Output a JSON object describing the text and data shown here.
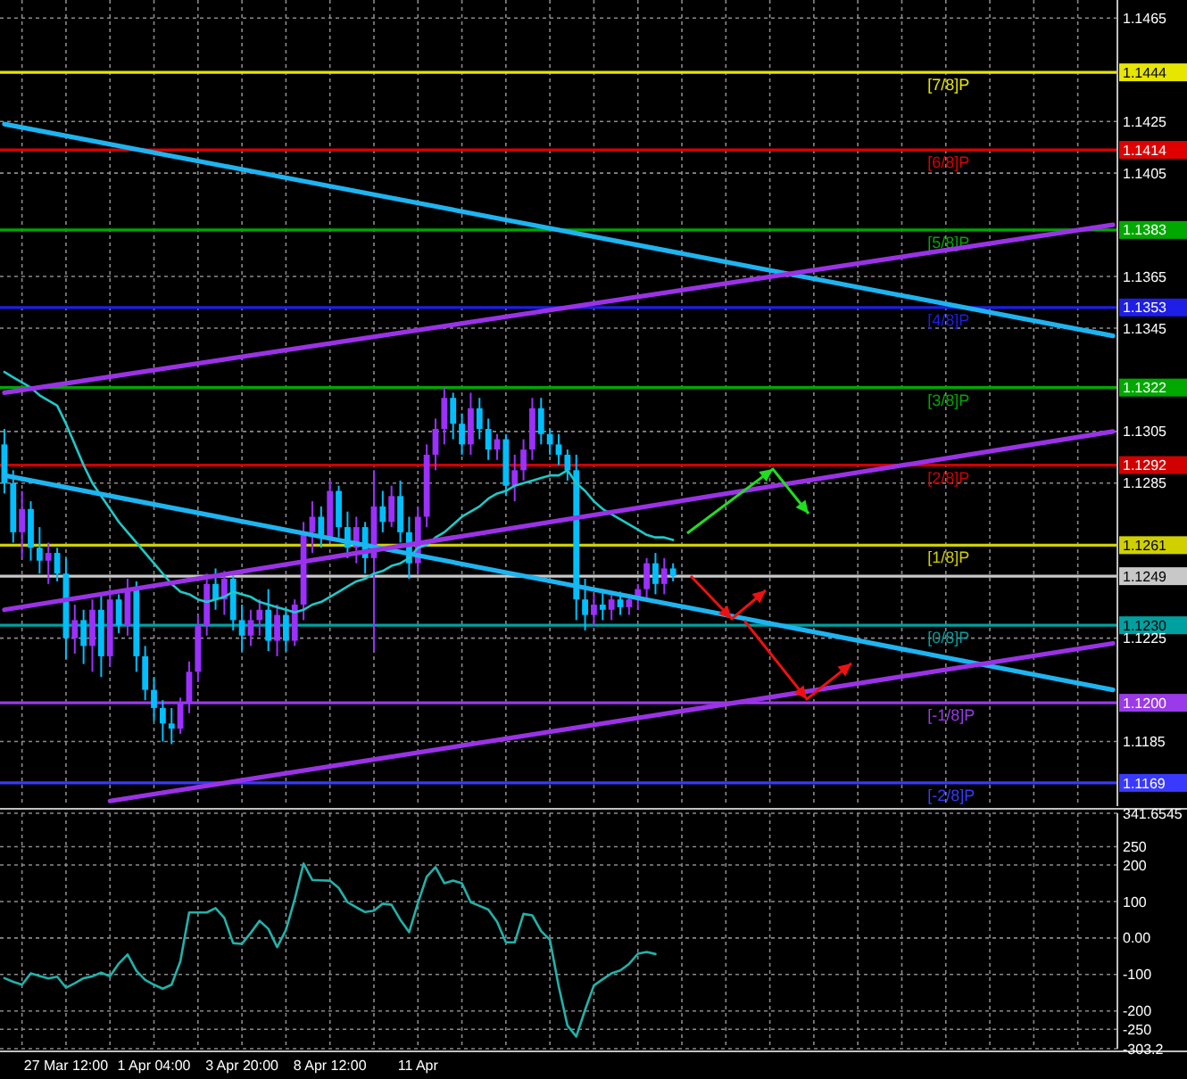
{
  "chart_data": [
    {
      "type": "candlestick",
      "ylim": [
        1.116,
        1.1472
      ],
      "grid": true,
      "tick_labels": "y",
      "categories": [
        null,
        null,
        null,
        null,
        null,
        null,
        null,
        null,
        null,
        null,
        null,
        null,
        null,
        null,
        null,
        null,
        null,
        null,
        null,
        null,
        null,
        null,
        null,
        null,
        null,
        null,
        null,
        null,
        null,
        null,
        null,
        null,
        null,
        null,
        null,
        null,
        null,
        null,
        null,
        null,
        null,
        null,
        null,
        null,
        null,
        null,
        null,
        null,
        null,
        null,
        null,
        null,
        null,
        null,
        null,
        null,
        null,
        null,
        null,
        null,
        null,
        null,
        null,
        null,
        null,
        null,
        null,
        null,
        null,
        null,
        null,
        null,
        null,
        null,
        null,
        null,
        null,
        null,
        null,
        null,
        null,
        null,
        null,
        null,
        null,
        null,
        null,
        null,
        null,
        null,
        null,
        null,
        null,
        null,
        null,
        null,
        null,
        null,
        null,
        null,
        null,
        null,
        null,
        null,
        null,
        null,
        null,
        null,
        null,
        null,
        null,
        null,
        null,
        null,
        null,
        null,
        null,
        null,
        null,
        null,
        null,
        null,
        null,
        null,
        null,
        null,
        null
      ],
      "yticks": [
        1.1465,
        {
          "value": 1.1444,
          "label": "1.1444"
        },
        1.1425,
        {
          "value": 1.1414,
          "label": "1.1414"
        },
        1.1405,
        {
          "value": 1.1383,
          "label": "1.1383"
        },
        1.1365,
        {
          "value": 1.1353,
          "label": "1.1353"
        },
        1.1345,
        {
          "value": 1.1322,
          "label": "1.1322"
        },
        1.1305,
        {
          "value": 1.1292,
          "label": "1.1292"
        },
        1.1285,
        {
          "value": 1.1261,
          "label": "1.1261"
        },
        {
          "value": 1.1249,
          "label": "1.1249"
        },
        {
          "value": 1.123,
          "label": "1.1230"
        },
        1.1225,
        {
          "value": 1.12,
          "label": "1.1200"
        },
        1.1185,
        {
          "value": 1.1169,
          "label": "1.1169"
        }
      ],
      "ref_lines": [
        {
          "axis": "y",
          "value": 1.1444,
          "label": "[7/8]P",
          "color": "#e6e600"
        },
        {
          "axis": "y",
          "value": 1.1414,
          "label": "[6/8]P",
          "color": "#e00000"
        },
        {
          "axis": "y",
          "value": 1.1383,
          "label": "[5/8]P",
          "color": "#00a800"
        },
        {
          "axis": "y",
          "value": 1.1353,
          "label": "[4/8]P",
          "color": "#1e1ee6"
        },
        {
          "axis": "y",
          "value": 1.1322,
          "label": "[3/8]P",
          "color": "#00a800"
        },
        {
          "axis": "y",
          "value": 1.1292,
          "label": "[2/8]P",
          "color": "#d00000"
        },
        {
          "axis": "y",
          "value": 1.1261,
          "label": "[1/8]P",
          "color": "#d0d000"
        },
        {
          "axis": "y",
          "value": 1.1249,
          "color": "#c8c8c8"
        },
        {
          "axis": "y",
          "value": 1.123,
          "label": "[0/8]P",
          "color": "#00a0a0"
        },
        {
          "axis": "y",
          "value": 1.12,
          "label": "[-1/8]P",
          "color": "#9a3ae8"
        },
        {
          "axis": "y",
          "value": 1.1169,
          "label": "[-2/8]P",
          "color": "#3a3aff"
        }
      ],
      "series": [
        {
          "ohlc": [
            [
              1.13,
              1.1306,
              1.1281,
              1.1285
            ],
            [
              1.1285,
              1.129,
              1.1262,
              1.1266
            ],
            [
              1.1266,
              1.1282,
              1.1256,
              1.1275
            ],
            [
              1.1275,
              1.1278,
              1.1255,
              1.126
            ],
            [
              1.126,
              1.1268,
              1.125,
              1.1255
            ],
            [
              1.1255,
              1.1262,
              1.1246,
              1.1258
            ],
            [
              1.1258,
              1.126,
              1.1247,
              1.125
            ],
            [
              1.125,
              1.1256,
              1.1217,
              1.1225
            ],
            [
              1.1225,
              1.1238,
              1.1219,
              1.1232
            ],
            [
              1.1232,
              1.1236,
              1.1215,
              1.1222
            ],
            [
              1.1222,
              1.124,
              1.1212,
              1.1236
            ],
            [
              1.1236,
              1.1242,
              1.121,
              1.1218
            ],
            [
              1.1218,
              1.1244,
              1.1214,
              1.124
            ],
            [
              1.124,
              1.1242,
              1.1227,
              1.123
            ],
            [
              1.123,
              1.1248,
              1.1226,
              1.1244
            ],
            [
              1.1244,
              1.1247,
              1.1212,
              1.1218
            ],
            [
              1.1218,
              1.1222,
              1.1201,
              1.1205
            ],
            [
              1.1205,
              1.121,
              1.1193,
              1.1198
            ],
            [
              1.1198,
              1.1201,
              1.1185,
              1.1192
            ],
            [
              1.1192,
              1.1198,
              1.1184,
              1.119
            ],
            [
              1.119,
              1.1202,
              1.1188,
              1.12
            ],
            [
              1.12,
              1.1216,
              1.1196,
              1.1212
            ],
            [
              1.1212,
              1.1234,
              1.1208,
              1.123
            ],
            [
              1.123,
              1.125,
              1.1226,
              1.1246
            ],
            [
              1.1246,
              1.1252,
              1.1236,
              1.124
            ],
            [
              1.124,
              1.1251,
              1.1234,
              1.1248
            ],
            [
              1.1248,
              1.125,
              1.1228,
              1.1232
            ],
            [
              1.1232,
              1.1238,
              1.122,
              1.1226
            ],
            [
              1.1226,
              1.1236,
              1.1222,
              1.1232
            ],
            [
              1.1232,
              1.124,
              1.1226,
              1.1236
            ],
            [
              1.1236,
              1.1244,
              1.122,
              1.1224
            ],
            [
              1.1224,
              1.1238,
              1.1218,
              1.1234
            ],
            [
              1.1234,
              1.1237,
              1.122,
              1.1224
            ],
            [
              1.1224,
              1.124,
              1.1222,
              1.1238
            ],
            [
              1.1238,
              1.127,
              1.1232,
              1.1266
            ],
            [
              1.1266,
              1.1278,
              1.1258,
              1.1272
            ],
            [
              1.1272,
              1.1276,
              1.126,
              1.1264
            ],
            [
              1.1264,
              1.1286,
              1.1262,
              1.1282
            ],
            [
              1.1282,
              1.1284,
              1.1264,
              1.1268
            ],
            [
              1.1268,
              1.1274,
              1.1256,
              1.126
            ],
            [
              1.126,
              1.1272,
              1.1254,
              1.1268
            ],
            [
              1.1268,
              1.127,
              1.125,
              1.1256
            ],
            [
              1.1256,
              1.129,
              1.122,
              1.1276
            ],
            [
              1.1276,
              1.1282,
              1.1266,
              1.127
            ],
            [
              1.127,
              1.1284,
              1.1268,
              1.128
            ],
            [
              1.128,
              1.1286,
              1.1262,
              1.1266
            ],
            [
              1.1266,
              1.1272,
              1.1248,
              1.1254
            ],
            [
              1.1254,
              1.1276,
              1.125,
              1.1272
            ],
            [
              1.1272,
              1.13,
              1.1268,
              1.1296
            ],
            [
              1.1296,
              1.131,
              1.129,
              1.1306
            ],
            [
              1.1306,
              1.1322,
              1.13,
              1.1318
            ],
            [
              1.1318,
              1.132,
              1.1302,
              1.1308
            ],
            [
              1.1308,
              1.1312,
              1.1296,
              1.13
            ],
            [
              1.13,
              1.132,
              1.1296,
              1.1314
            ],
            [
              1.1314,
              1.1318,
              1.1302,
              1.1306
            ],
            [
              1.1306,
              1.131,
              1.1294,
              1.1298
            ],
            [
              1.1298,
              1.1304,
              1.1294,
              1.1302
            ],
            [
              1.1302,
              1.1304,
              1.128,
              1.1284
            ],
            [
              1.1284,
              1.1296,
              1.1278,
              1.129
            ],
            [
              1.129,
              1.1302,
              1.1286,
              1.1298
            ],
            [
              1.1298,
              1.1318,
              1.1294,
              1.1314
            ],
            [
              1.1314,
              1.1318,
              1.13,
              1.1304
            ],
            [
              1.1304,
              1.1306,
              1.1296,
              1.13
            ],
            [
              1.13,
              1.1304,
              1.1292,
              1.1296
            ],
            [
              1.1296,
              1.1298,
              1.1286,
              1.129
            ],
            [
              1.129,
              1.1296,
              1.1232,
              1.124
            ],
            [
              1.124,
              1.1248,
              1.1228,
              1.1234
            ],
            [
              1.1234,
              1.1242,
              1.123,
              1.1238
            ],
            [
              1.1238,
              1.1244,
              1.1232,
              1.1236
            ],
            [
              1.1236,
              1.1242,
              1.1232,
              1.124
            ],
            [
              1.124,
              1.1243,
              1.1234,
              1.1237
            ],
            [
              1.1237,
              1.1242,
              1.1234,
              1.124
            ],
            [
              1.124,
              1.1246,
              1.1236,
              1.1244
            ],
            [
              1.1244,
              1.1256,
              1.124,
              1.1254
            ],
            [
              1.1254,
              1.1258,
              1.1242,
              1.1246
            ],
            [
              1.1246,
              1.1256,
              1.1242,
              1.1252
            ],
            [
              1.1252,
              1.1254,
              1.1247,
              1.1249
            ],
            null,
            null,
            null,
            null,
            null,
            null,
            null,
            null,
            null,
            null,
            null,
            null,
            null,
            null,
            null,
            null,
            null,
            null,
            null,
            null,
            null,
            null,
            null,
            null,
            null,
            null,
            null,
            null,
            null,
            null,
            null,
            null,
            null,
            null,
            null,
            null,
            null,
            null,
            null,
            null,
            null,
            null,
            null,
            null,
            null,
            null,
            null,
            null,
            null,
            null
          ],
          "colors": [
            "#00bfff",
            "#00bfff",
            "#9b30ff",
            "#00bfff",
            "#00bfff",
            "#9b30ff",
            "#00bfff",
            "#00bfff",
            "#9b30ff",
            "#00bfff",
            "#9b30ff",
            "#00bfff",
            "#9b30ff",
            "#00bfff",
            "#9b30ff",
            "#00bfff",
            "#00bfff",
            "#00bfff",
            "#00bfff",
            "#00bfff",
            "#9b30ff",
            "#9b30ff",
            "#9b30ff",
            "#9b30ff",
            "#00bfff",
            "#9b30ff",
            "#00bfff",
            "#00bfff",
            "#9b30ff",
            "#9b30ff",
            "#00bfff",
            "#9b30ff",
            "#00bfff",
            "#9b30ff",
            "#9b30ff",
            "#9b30ff",
            "#00bfff",
            "#9b30ff",
            "#00bfff",
            "#00bfff",
            "#9b30ff",
            "#00bfff",
            "#9b30ff",
            "#00bfff",
            "#9b30ff",
            "#00bfff",
            "#00bfff",
            "#9b30ff",
            "#9b30ff",
            "#9b30ff",
            "#9b30ff",
            "#00bfff",
            "#00bfff",
            "#9b30ff",
            "#00bfff",
            "#00bfff",
            "#9b30ff",
            "#00bfff",
            "#9b30ff",
            "#9b30ff",
            "#9b30ff",
            "#00bfff",
            "#00bfff",
            "#00bfff",
            "#00bfff",
            "#00bfff",
            "#00bfff",
            "#9b30ff",
            "#00bfff",
            "#9b30ff",
            "#00bfff",
            "#9b30ff",
            "#9b30ff",
            "#9b30ff",
            "#00bfff",
            "#9b30ff",
            "#00bfff",
            null,
            null,
            null,
            null,
            null,
            null,
            null,
            null,
            null,
            null,
            null,
            null,
            null,
            null,
            null,
            null,
            null,
            null,
            null,
            null,
            null,
            null,
            null,
            null,
            null,
            null,
            null,
            null,
            null,
            null,
            null,
            null,
            null,
            null,
            null,
            null,
            null,
            null,
            null,
            null,
            null,
            null,
            null,
            null,
            null,
            null,
            null,
            null,
            null,
            null
          ]
        },
        {
          "type": "line",
          "color": "#20c8c8",
          "values": [
            1.1328,
            1.1326,
            1.1324,
            1.1322,
            1.1319,
            1.1317,
            1.1315,
            1.1308,
            1.13,
            1.1292,
            1.1285,
            1.128,
            1.1275,
            1.127,
            1.1266,
            1.1262,
            1.1258,
            1.1254,
            1.125,
            1.1246,
            1.1243,
            1.1242,
            1.124,
            1.1239,
            1.124,
            1.1241,
            1.1243,
            1.1242,
            1.1241,
            1.1239,
            1.1238,
            1.1237,
            1.1236,
            1.1235,
            1.1236,
            1.1238,
            1.1239,
            1.1241,
            1.1243,
            1.1245,
            1.1247,
            1.1248,
            1.125,
            1.1251,
            1.1253,
            1.1254,
            1.1256,
            1.126,
            1.1261,
            1.1264,
            1.1266,
            1.1269,
            1.1272,
            1.1274,
            1.1276,
            1.1279,
            1.1281,
            1.1282,
            1.1284,
            1.1285,
            1.1286,
            1.1287,
            1.1288,
            1.1288,
            1.129,
            1.1285,
            1.1282,
            1.1278,
            1.1275,
            1.1273,
            1.1271,
            1.1269,
            1.1267,
            1.1265,
            1.1264,
            1.1264,
            1.1263,
            null,
            null,
            null,
            null,
            null,
            null,
            null,
            null,
            null,
            null,
            null,
            null,
            null,
            null,
            null,
            null,
            null,
            null,
            null,
            null,
            null,
            null,
            null,
            null,
            null,
            null,
            null,
            null,
            null,
            null,
            null,
            null,
            null,
            null,
            null,
            null,
            null,
            null,
            null,
            null,
            null,
            null,
            null,
            null,
            null,
            null,
            null,
            null,
            null,
            null
          ]
        },
        {
          "type": "line",
          "color": "#1eb4f0",
          "values": [
            1.1288,
            null,
            null,
            null,
            null,
            null,
            null,
            null,
            null,
            null,
            null,
            null,
            null,
            null,
            null,
            null,
            null,
            null,
            null,
            null,
            null,
            null,
            null,
            null,
            null,
            null,
            null,
            null,
            null,
            null,
            null,
            null,
            null,
            null,
            null,
            null,
            null,
            null,
            null,
            null,
            null,
            null,
            null,
            null,
            null,
            null,
            null,
            null,
            null,
            null,
            null,
            null,
            null,
            null,
            null,
            null,
            null,
            null,
            null,
            null,
            null,
            null,
            null,
            null,
            null,
            null,
            null,
            null,
            null,
            null,
            null,
            null,
            null,
            null,
            null,
            null,
            null,
            null,
            null,
            null,
            null,
            null,
            null,
            null,
            null,
            null,
            null,
            null,
            null,
            null,
            null,
            null,
            null,
            null,
            null,
            null,
            null,
            null,
            null,
            null,
            null,
            null,
            null,
            null,
            null,
            null,
            null,
            null,
            null,
            null,
            null,
            null,
            null,
            null,
            null,
            null,
            null,
            null,
            null,
            null,
            null,
            null,
            null,
            null,
            null,
            null,
            1.1205
          ]
        },
        {
          "type": "line",
          "color": "#1eb4f0",
          "values": [
            1.1424,
            null,
            null,
            null,
            null,
            null,
            null,
            null,
            null,
            null,
            null,
            null,
            null,
            null,
            null,
            null,
            null,
            null,
            null,
            null,
            null,
            null,
            null,
            null,
            null,
            null,
            null,
            null,
            null,
            null,
            null,
            null,
            null,
            null,
            null,
            null,
            null,
            null,
            null,
            null,
            null,
            null,
            null,
            null,
            null,
            null,
            null,
            null,
            null,
            null,
            null,
            null,
            null,
            null,
            null,
            null,
            null,
            null,
            null,
            null,
            null,
            null,
            null,
            null,
            null,
            null,
            null,
            null,
            null,
            null,
            null,
            null,
            null,
            null,
            null,
            null,
            null,
            null,
            null,
            null,
            null,
            null,
            null,
            null,
            null,
            null,
            null,
            null,
            null,
            null,
            null,
            null,
            null,
            null,
            null,
            null,
            null,
            null,
            null,
            null,
            null,
            null,
            null,
            null,
            null,
            null,
            null,
            null,
            null,
            null,
            null,
            null,
            null,
            null,
            null,
            null,
            null,
            null,
            null,
            null,
            null,
            null,
            null,
            null,
            null,
            null,
            1.1342
          ]
        },
        {
          "type": "line",
          "color": "#9a32e6",
          "values": [
            1.132,
            null,
            null,
            null,
            null,
            null,
            null,
            null,
            null,
            null,
            null,
            null,
            null,
            null,
            null,
            null,
            null,
            null,
            null,
            null,
            null,
            null,
            null,
            null,
            null,
            null,
            null,
            null,
            null,
            null,
            null,
            null,
            null,
            null,
            null,
            null,
            null,
            null,
            null,
            null,
            null,
            null,
            null,
            null,
            null,
            null,
            null,
            null,
            null,
            null,
            null,
            null,
            null,
            null,
            null,
            null,
            null,
            null,
            null,
            null,
            null,
            null,
            null,
            null,
            null,
            null,
            null,
            null,
            null,
            null,
            null,
            null,
            null,
            null,
            null,
            null,
            null,
            null,
            null,
            null,
            null,
            null,
            null,
            null,
            null,
            null,
            null,
            null,
            null,
            null,
            null,
            null,
            null,
            null,
            null,
            null,
            null,
            null,
            null,
            null,
            null,
            null,
            null,
            null,
            null,
            null,
            null,
            null,
            null,
            null,
            null,
            null,
            null,
            null,
            null,
            null,
            null,
            null,
            null,
            null,
            null,
            null,
            null,
            null,
            null,
            null,
            1.1385
          ]
        },
        {
          "type": "line",
          "color": "#9a32e6",
          "values": [
            1.1236,
            null,
            null,
            null,
            null,
            null,
            null,
            null,
            null,
            null,
            null,
            null,
            null,
            null,
            null,
            null,
            null,
            null,
            null,
            null,
            null,
            null,
            null,
            null,
            null,
            null,
            null,
            null,
            null,
            null,
            null,
            null,
            null,
            null,
            null,
            null,
            null,
            null,
            null,
            null,
            null,
            null,
            null,
            null,
            null,
            null,
            null,
            null,
            null,
            null,
            null,
            null,
            null,
            null,
            null,
            null,
            null,
            null,
            null,
            null,
            null,
            null,
            null,
            null,
            null,
            null,
            null,
            null,
            null,
            null,
            null,
            null,
            null,
            null,
            null,
            null,
            null,
            null,
            null,
            null,
            null,
            null,
            null,
            null,
            null,
            null,
            null,
            null,
            null,
            null,
            null,
            null,
            null,
            null,
            null,
            null,
            null,
            null,
            null,
            null,
            null,
            null,
            null,
            null,
            null,
            null,
            null,
            null,
            null,
            null,
            null,
            null,
            null,
            null,
            null,
            null,
            null,
            null,
            null,
            null,
            null,
            null,
            null,
            null,
            null,
            null,
            1.1305
          ]
        },
        {
          "type": "line",
          "color": "#9a32e6",
          "values": [
            null,
            null,
            null,
            null,
            null,
            null,
            null,
            null,
            null,
            null,
            null,
            null,
            1.1162,
            null,
            null,
            null,
            null,
            null,
            null,
            null,
            null,
            null,
            null,
            null,
            null,
            null,
            null,
            null,
            null,
            null,
            null,
            null,
            null,
            null,
            null,
            null,
            null,
            null,
            null,
            null,
            null,
            null,
            null,
            null,
            null,
            null,
            null,
            null,
            null,
            null,
            null,
            null,
            null,
            null,
            null,
            null,
            null,
            null,
            null,
            null,
            null,
            null,
            null,
            null,
            null,
            null,
            null,
            null,
            null,
            null,
            null,
            null,
            null,
            null,
            null,
            null,
            null,
            null,
            null,
            null,
            null,
            null,
            null,
            null,
            null,
            null,
            null,
            null,
            null,
            null,
            null,
            null,
            null,
            null,
            null,
            null,
            null,
            null,
            null,
            null,
            null,
            null,
            null,
            null,
            null,
            null,
            null,
            null,
            null,
            null,
            null,
            null,
            null,
            null,
            null,
            null,
            null,
            null,
            null,
            null,
            null,
            null,
            null,
            null,
            null,
            null,
            1.1223
          ]
        }
      ]
    },
    {
      "type": "line",
      "ylim": [
        -303.2,
        341.6545
      ],
      "grid": true,
      "categories": [
        null,
        null,
        null,
        null,
        null,
        null,
        null,
        "27 Mar 12:00",
        null,
        null,
        null,
        null,
        null,
        null,
        null,
        null,
        null,
        "1 Apr 04:00",
        null,
        null,
        null,
        null,
        null,
        null,
        null,
        null,
        null,
        "3 Apr 20:00",
        null,
        null,
        null,
        null,
        null,
        null,
        null,
        null,
        null,
        "8 Apr 12:00",
        null,
        null,
        null,
        null,
        null,
        null,
        null,
        null,
        null,
        "11 Apr",
        null,
        null,
        null,
        null,
        null,
        null,
        null,
        null,
        null,
        null,
        null,
        null,
        null,
        null,
        null,
        null,
        null,
        null,
        null,
        null,
        null,
        null,
        null,
        null,
        null,
        null,
        null,
        null,
        null,
        null,
        null,
        null,
        null,
        null,
        null,
        null,
        null,
        null,
        null,
        null,
        null,
        null,
        null,
        null,
        null,
        null,
        null,
        null,
        null,
        null,
        null,
        null,
        null,
        null,
        null,
        null,
        null,
        null,
        null,
        null,
        null,
        null,
        null,
        null,
        null,
        null,
        null,
        null,
        null,
        null,
        null,
        null,
        null,
        null,
        null,
        null,
        null,
        null,
        null
      ],
      "yticks": [
        341.6545,
        250,
        200,
        100,
        {
          "value": 0,
          "label": "0.00"
        },
        -100,
        -200,
        -250,
        -303.2
      ],
      "series": [
        {
          "color": "#20b2aa",
          "values": [
            -110,
            -120,
            -128,
            -97,
            -104,
            -111,
            -106,
            -136,
            -124,
            -110,
            -105,
            -95,
            -105,
            -70,
            -45,
            -90,
            -115,
            -128,
            -139,
            -128,
            -64,
            70,
            70,
            70,
            82,
            55,
            -14,
            -16,
            14,
            47,
            25,
            -25,
            22,
            106,
            204,
            159,
            158,
            157,
            137,
            98,
            84,
            71,
            75,
            94,
            91,
            50,
            16,
            96,
            168,
            194,
            150,
            157,
            150,
            98,
            88,
            78,
            44,
            -12,
            -12,
            66,
            62,
            19,
            -5,
            -132,
            -240,
            -270,
            -197,
            -130,
            -113,
            -97,
            -89,
            -71,
            -43,
            -38,
            -44,
            null,
            null,
            null,
            null,
            null,
            null,
            null,
            null,
            null,
            null,
            null,
            null,
            null,
            null,
            null,
            null,
            null,
            null,
            null,
            null,
            null,
            null,
            null,
            null,
            null,
            null,
            null,
            null,
            null,
            null,
            null,
            null,
            null,
            null,
            null,
            null,
            null,
            null,
            null,
            null,
            null,
            null,
            null,
            null,
            null,
            null,
            null,
            null,
            null,
            null,
            null,
            null
          ]
        }
      ]
    }
  ]
}
